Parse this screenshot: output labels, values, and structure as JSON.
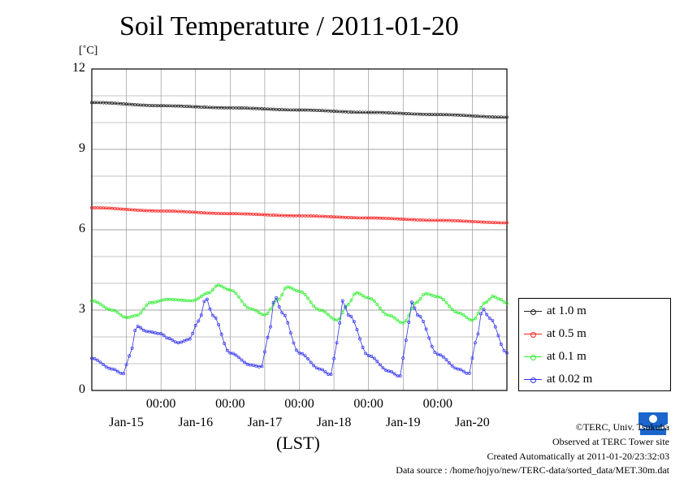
{
  "title": "Soil Temperature / 2011-01-20",
  "unit": "[˚C]",
  "x_axis_label": "(LST)",
  "time_ticks": [
    "00:00",
    "00:00",
    "00:00",
    "00:00",
    "00:00"
  ],
  "date_ticks": [
    "Jan-15",
    "Jan-16",
    "Jan-17",
    "Jan-18",
    "Jan-19",
    "Jan-20"
  ],
  "y_ticks": [
    "12",
    "9",
    "6",
    "3",
    "0"
  ],
  "legend": [
    "at 1.0 m",
    "at 0.5 m",
    "at 0.1 m",
    "at 0.02 m"
  ],
  "colors": {
    "1.0m": "#222222",
    "0.5m": "#ff2020",
    "0.1m": "#33ee33",
    "0.02m": "#3333ee"
  },
  "credits": {
    "copyright": "©TERC, Univ. Tsukuba",
    "site": "Observed at TERC Tower site",
    "created": "Created Automatically at 2011-01-20/23:32:03",
    "source": "Data source : /home/hojyo/new/TERC-data/sorted_data/MET.30m.dat"
  },
  "chart_data": {
    "type": "line",
    "title": "Soil Temperature / 2011-01-20",
    "ylabel": "[˚C]",
    "xlabel": "(LST)",
    "ylim": [
      0,
      12
    ],
    "x_unit": "days since Jan-15 00:00 (LST)",
    "xlim": [
      -1.0,
      5.0
    ],
    "grid": true,
    "legend_position": "bottom-right, outside plot",
    "series": [
      {
        "name": "at 1.0 m",
        "color": "#222222",
        "points": [
          [
            -1.0,
            10.75
          ],
          [
            0.0,
            10.63
          ],
          [
            1.0,
            10.55
          ],
          [
            2.0,
            10.47
          ],
          [
            3.0,
            10.38
          ],
          [
            4.0,
            10.3
          ],
          [
            5.0,
            10.2
          ]
        ]
      },
      {
        "name": "at 0.5 m",
        "color": "#ff2020",
        "points": [
          [
            -1.0,
            6.82
          ],
          [
            0.0,
            6.7
          ],
          [
            1.0,
            6.6
          ],
          [
            2.0,
            6.52
          ],
          [
            3.0,
            6.44
          ],
          [
            4.0,
            6.35
          ],
          [
            5.0,
            6.26
          ]
        ]
      },
      {
        "name": "at 0.1 m",
        "color": "#33ee33",
        "points": [
          [
            -1.0,
            3.35
          ],
          [
            -0.7,
            3.0
          ],
          [
            -0.5,
            2.72
          ],
          [
            -0.35,
            2.8
          ],
          [
            -0.15,
            3.28
          ],
          [
            0.1,
            3.4
          ],
          [
            0.45,
            3.35
          ],
          [
            0.7,
            3.65
          ],
          [
            0.82,
            3.93
          ],
          [
            1.0,
            3.75
          ],
          [
            1.3,
            3.05
          ],
          [
            1.5,
            2.82
          ],
          [
            1.7,
            3.4
          ],
          [
            1.82,
            3.87
          ],
          [
            2.0,
            3.7
          ],
          [
            2.3,
            3.0
          ],
          [
            2.55,
            2.62
          ],
          [
            2.7,
            3.2
          ],
          [
            2.82,
            3.65
          ],
          [
            3.0,
            3.45
          ],
          [
            3.3,
            2.8
          ],
          [
            3.5,
            2.52
          ],
          [
            3.7,
            3.3
          ],
          [
            3.82,
            3.62
          ],
          [
            4.0,
            3.5
          ],
          [
            4.3,
            2.9
          ],
          [
            4.5,
            2.62
          ],
          [
            4.7,
            3.3
          ],
          [
            4.8,
            3.52
          ],
          [
            4.9,
            3.4
          ],
          [
            5.0,
            3.25
          ]
        ]
      },
      {
        "name": "at 0.02 m",
        "color": "#3333ee",
        "points": [
          [
            -1.0,
            1.2
          ],
          [
            -0.7,
            0.8
          ],
          [
            -0.55,
            0.62
          ],
          [
            -0.45,
            1.3
          ],
          [
            -0.35,
            2.4
          ],
          [
            -0.2,
            2.2
          ],
          [
            0.0,
            2.12
          ],
          [
            0.1,
            1.95
          ],
          [
            0.25,
            1.78
          ],
          [
            0.4,
            1.9
          ],
          [
            0.55,
            2.6
          ],
          [
            0.65,
            3.45
          ],
          [
            0.75,
            2.8
          ],
          [
            1.0,
            1.4
          ],
          [
            1.3,
            0.95
          ],
          [
            1.45,
            0.88
          ],
          [
            1.55,
            2.0
          ],
          [
            1.65,
            3.5
          ],
          [
            1.75,
            2.9
          ],
          [
            2.0,
            1.4
          ],
          [
            2.3,
            0.8
          ],
          [
            2.45,
            0.58
          ],
          [
            2.55,
            1.8
          ],
          [
            2.62,
            3.35
          ],
          [
            2.72,
            2.8
          ],
          [
            3.0,
            1.3
          ],
          [
            3.3,
            0.72
          ],
          [
            3.45,
            0.52
          ],
          [
            3.55,
            1.9
          ],
          [
            3.62,
            3.3
          ],
          [
            3.72,
            2.8
          ],
          [
            4.0,
            1.35
          ],
          [
            4.3,
            0.8
          ],
          [
            4.45,
            0.62
          ],
          [
            4.55,
            1.8
          ],
          [
            4.65,
            3.05
          ],
          [
            4.75,
            2.7
          ],
          [
            5.0,
            1.4
          ]
        ]
      }
    ]
  }
}
